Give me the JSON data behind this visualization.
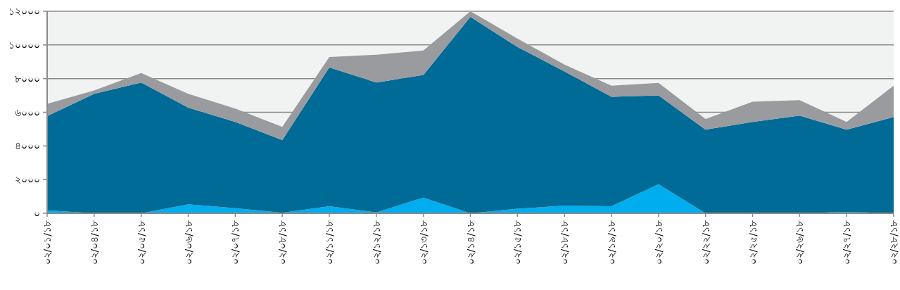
{
  "chart_data": {
    "type": "area",
    "stacked": true,
    "grid": "y",
    "categories": [
      "০২/০১/১৮",
      "০২/০৪/১৮",
      "০২/০৫/১৮",
      "০২/০৬/১৮",
      "০২/০৭/১৮",
      "০২/০৮/১৮",
      "০২/১১/১৮",
      "০২/১২/১৮",
      "০২/১৩/১৮",
      "০২/১৪/১৮",
      "০২/১৫/১৮",
      "০২/১৮/১৮",
      "০২/১৯/১৮",
      "০২/২০/১৮",
      "০২/২২/১৮",
      "০২/২৫/১৮",
      "০২/২৬/১৮",
      "০২/২৭/১৮",
      "০২/২৮/১৮"
    ],
    "series": [
      {
        "color": "#00aeef",
        "values": [
          180,
          0,
          0,
          530,
          300,
          30,
          420,
          50,
          930,
          0,
          270,
          450,
          420,
          1720,
          0,
          0,
          0,
          80,
          0
        ]
      },
      {
        "color": "#006b96",
        "values": [
          5590,
          7100,
          7770,
          5740,
          5120,
          4320,
          8250,
          7720,
          7290,
          11670,
          9610,
          7980,
          6500,
          5280,
          4970,
          5430,
          5800,
          4890,
          5720
        ]
      },
      {
        "color": "#9a9b9f",
        "values": [
          730,
          200,
          560,
          830,
          800,
          780,
          610,
          1650,
          1450,
          330,
          500,
          400,
          660,
          750,
          630,
          1200,
          920,
          460,
          1860
        ]
      }
    ],
    "ylim": [
      0,
      12000
    ],
    "yticks": [
      {
        "value": 0,
        "label": "০"
      },
      {
        "value": 2000,
        "label": "২০০০"
      },
      {
        "value": 4000,
        "label": "৪০০০"
      },
      {
        "value": 6000,
        "label": "৬০০০"
      },
      {
        "value": 8000,
        "label": "৮০০০"
      },
      {
        "value": 10000,
        "label": "১০০০০"
      },
      {
        "value": 12000,
        "label": "১২০০০"
      }
    ]
  }
}
